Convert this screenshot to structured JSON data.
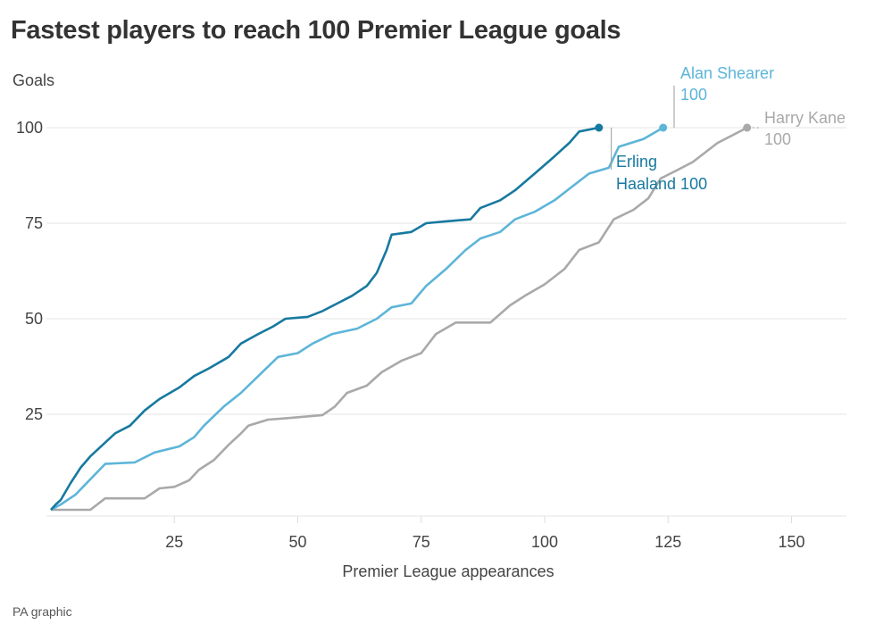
{
  "title": "Fastest players to reach 100 Premier League goals",
  "source": "PA graphic",
  "chart_data": {
    "type": "line",
    "title": "Fastest players to reach 100 Premier League goals",
    "xlabel": "Premier League appearances",
    "ylabel": "Goals",
    "xlim": [
      0,
      161
    ],
    "ylim": [
      -1.5,
      103
    ],
    "xticks": [
      25,
      50,
      75,
      100,
      125,
      150
    ],
    "yticks": [
      25,
      50,
      75,
      100
    ],
    "grid": "horizontal",
    "series": [
      {
        "name": "Harry Kane",
        "label_value": "100",
        "color": "#a9a9a9",
        "points": [
          [
            0,
            0
          ],
          [
            8,
            0
          ],
          [
            11,
            3
          ],
          [
            19,
            3
          ],
          [
            22,
            5.6
          ],
          [
            25,
            6
          ],
          [
            28,
            7.7
          ],
          [
            30,
            10.5
          ],
          [
            33,
            13
          ],
          [
            36,
            17
          ],
          [
            38.5,
            20
          ],
          [
            40,
            22
          ],
          [
            44,
            23.6
          ],
          [
            48,
            24
          ],
          [
            55,
            24.8
          ],
          [
            57.5,
            27
          ],
          [
            60,
            30.6
          ],
          [
            64,
            32.5
          ],
          [
            67,
            36
          ],
          [
            71,
            39
          ],
          [
            75,
            41
          ],
          [
            78,
            46
          ],
          [
            82,
            49
          ],
          [
            89,
            49
          ],
          [
            93,
            53.5
          ],
          [
            96,
            56
          ],
          [
            100,
            59
          ],
          [
            104,
            63
          ],
          [
            107,
            68
          ],
          [
            111,
            70
          ],
          [
            114,
            76
          ],
          [
            118,
            78.5
          ],
          [
            121,
            81.5
          ],
          [
            123.5,
            86.7
          ],
          [
            127,
            89
          ],
          [
            130,
            91
          ],
          [
            135,
            96
          ],
          [
            138,
            98
          ],
          [
            141,
            100
          ]
        ]
      },
      {
        "name": "Alan Shearer",
        "label_value": "100",
        "color": "#5db5d8",
        "points": [
          [
            0,
            0
          ],
          [
            2,
            1.4
          ],
          [
            5,
            4
          ],
          [
            8,
            8
          ],
          [
            11,
            12
          ],
          [
            17,
            12.4
          ],
          [
            21,
            15
          ],
          [
            26,
            16.6
          ],
          [
            29,
            19
          ],
          [
            31,
            22
          ],
          [
            35,
            27
          ],
          [
            38.5,
            30.6
          ],
          [
            42,
            35
          ],
          [
            46,
            40
          ],
          [
            50,
            41
          ],
          [
            53,
            43.5
          ],
          [
            57,
            46
          ],
          [
            62,
            47.4
          ],
          [
            66,
            50
          ],
          [
            69,
            53
          ],
          [
            73,
            54
          ],
          [
            76,
            58.6
          ],
          [
            80,
            63
          ],
          [
            84,
            68
          ],
          [
            87,
            71
          ],
          [
            91,
            72.7
          ],
          [
            94,
            76
          ],
          [
            98,
            78
          ],
          [
            102,
            81
          ],
          [
            105,
            84
          ],
          [
            109,
            88
          ],
          [
            113,
            89.5
          ],
          [
            115,
            95
          ],
          [
            120,
            97
          ],
          [
            124,
            100
          ]
        ]
      },
      {
        "name": "Erling Haaland",
        "label_value": "100",
        "color": "#17799f",
        "points": [
          [
            0,
            0
          ],
          [
            1,
            1.4
          ],
          [
            2,
            2.6
          ],
          [
            4,
            7
          ],
          [
            6,
            11
          ],
          [
            8,
            14
          ],
          [
            10.5,
            17
          ],
          [
            13,
            20
          ],
          [
            16,
            22
          ],
          [
            19,
            26
          ],
          [
            22,
            29
          ],
          [
            26,
            32
          ],
          [
            29,
            35
          ],
          [
            32,
            37
          ],
          [
            36,
            40
          ],
          [
            38.5,
            43.5
          ],
          [
            42,
            46
          ],
          [
            45,
            48
          ],
          [
            47.5,
            50
          ],
          [
            52,
            50.5
          ],
          [
            55,
            52
          ],
          [
            58,
            54
          ],
          [
            61,
            56
          ],
          [
            64,
            58.6
          ],
          [
            66,
            62
          ],
          [
            68,
            68
          ],
          [
            69,
            72
          ],
          [
            73,
            72.7
          ],
          [
            76,
            75
          ],
          [
            80,
            75.5
          ],
          [
            85,
            76
          ],
          [
            87,
            79
          ],
          [
            91,
            81
          ],
          [
            94,
            83.6
          ],
          [
            98,
            88
          ],
          [
            102,
            92.5
          ],
          [
            105,
            96
          ],
          [
            107,
            99
          ],
          [
            111,
            100
          ]
        ]
      }
    ]
  }
}
